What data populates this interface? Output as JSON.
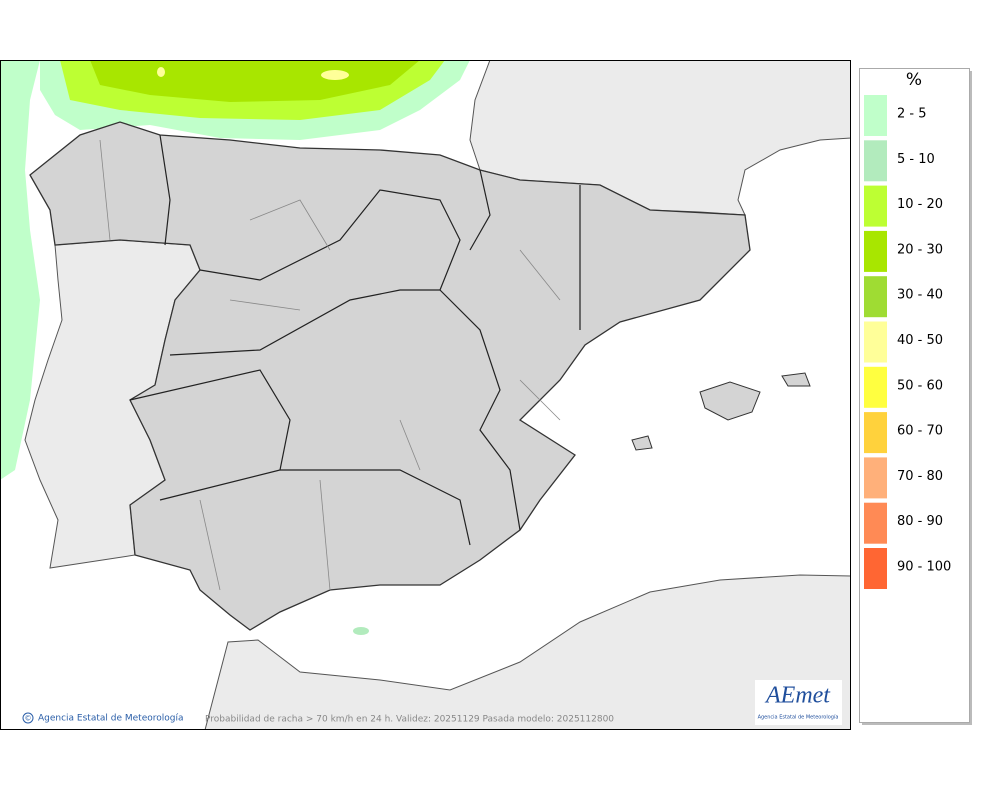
{
  "legend": {
    "title": "%",
    "items": [
      {
        "label": "2 - 5",
        "color": "#c0ffca"
      },
      {
        "label": "5 - 10",
        "color": "#b2ebbd"
      },
      {
        "label": "10 - 20",
        "color": "#bdff33"
      },
      {
        "label": "20 - 30",
        "color": "#a8e600"
      },
      {
        "label": "30 - 40",
        "color": "#9fdc33"
      },
      {
        "label": "40 - 50",
        "color": "#ffff99"
      },
      {
        "label": "50 - 60",
        "color": "#ffff40"
      },
      {
        "label": "60 - 70",
        "color": "#ffd23c"
      },
      {
        "label": "70 - 80",
        "color": "#ffb07a"
      },
      {
        "label": "80 - 90",
        "color": "#ff8a55"
      },
      {
        "label": "90 - 100",
        "color": "#ff6633"
      }
    ]
  },
  "map": {
    "copyright_symbol": "©",
    "credit": "Agencia Estatal de Meteorología",
    "caption": "Probabilidad de racha > 70 km/h en 24 h. Validez: 20251129 Pasada modelo: 2025112800",
    "logo": {
      "mark": "AEmet",
      "text": "Agencia Estatal de Meteorología"
    }
  }
}
